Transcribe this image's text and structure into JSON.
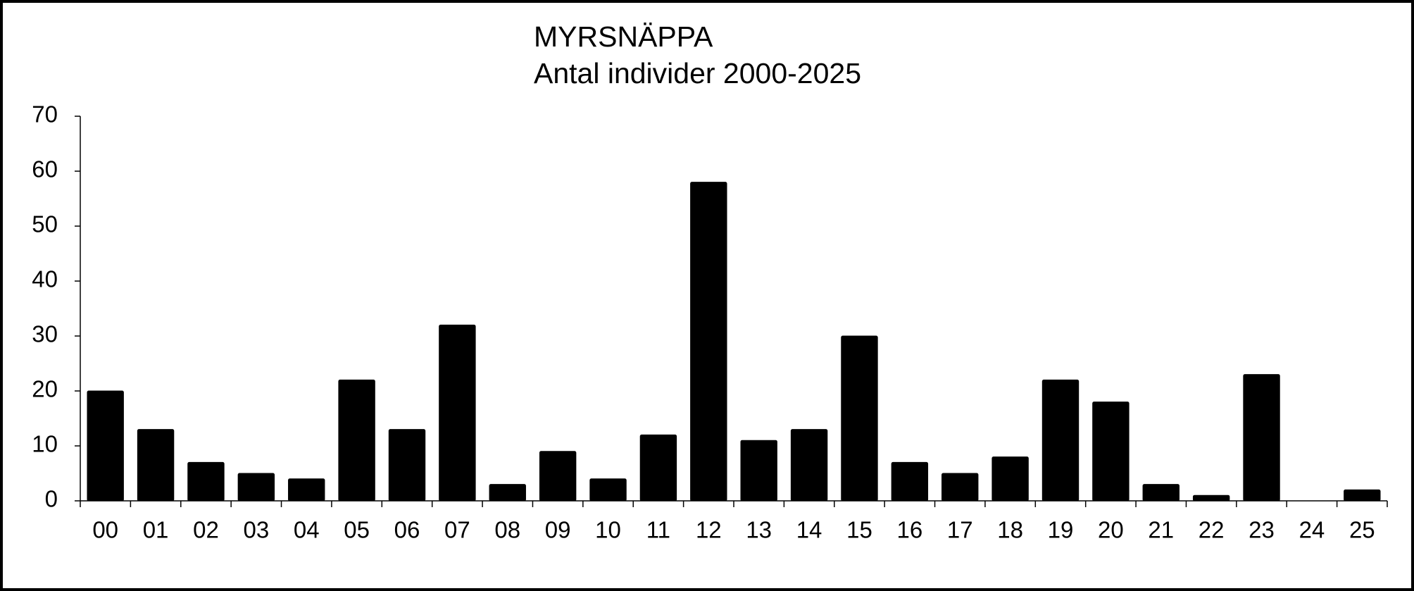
{
  "chart_data": {
    "type": "bar",
    "title": [
      "MYRSNÄPPA",
      "Antal individer 2000-2025"
    ],
    "categories": [
      "00",
      "01",
      "02",
      "03",
      "04",
      "05",
      "06",
      "07",
      "08",
      "09",
      "10",
      "11",
      "12",
      "13",
      "14",
      "15",
      "16",
      "17",
      "18",
      "19",
      "20",
      "21",
      "22",
      "23",
      "24",
      "25"
    ],
    "values": [
      20,
      13,
      7,
      5,
      4,
      22,
      13,
      32,
      3,
      9,
      4,
      12,
      58,
      11,
      13,
      30,
      7,
      5,
      8,
      22,
      18,
      3,
      1,
      23,
      0,
      2
    ],
    "color": "#000000",
    "ylim": [
      0,
      70
    ],
    "yticks": [
      0,
      10,
      20,
      30,
      40,
      50,
      60,
      70
    ],
    "grid": false
  }
}
